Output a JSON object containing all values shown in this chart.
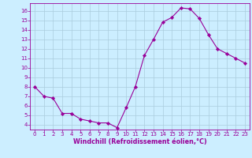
{
  "x": [
    0,
    1,
    2,
    3,
    4,
    5,
    6,
    7,
    8,
    9,
    10,
    11,
    12,
    13,
    14,
    15,
    16,
    17,
    18,
    19,
    20,
    21,
    22,
    23
  ],
  "y": [
    8.0,
    7.0,
    6.8,
    5.2,
    5.2,
    4.6,
    4.4,
    4.2,
    4.2,
    3.7,
    5.8,
    8.0,
    11.3,
    13.0,
    14.8,
    15.3,
    16.3,
    16.2,
    15.2,
    13.5,
    12.0,
    11.5,
    11.0,
    10.5
  ],
  "line_color": "#990099",
  "marker": "D",
  "marker_size": 2.2,
  "bg_color": "#cceeff",
  "grid_color": "#aaccdd",
  "xlabel": "Windchill (Refroidissement éolien,°C)",
  "xlim": [
    -0.5,
    23.5
  ],
  "ylim": [
    3.5,
    16.8
  ],
  "yticks": [
    4,
    5,
    6,
    7,
    8,
    9,
    10,
    11,
    12,
    13,
    14,
    15,
    16
  ],
  "xticks": [
    0,
    1,
    2,
    3,
    4,
    5,
    6,
    7,
    8,
    9,
    10,
    11,
    12,
    13,
    14,
    15,
    16,
    17,
    18,
    19,
    20,
    21,
    22,
    23
  ],
  "label_fontsize": 5.8,
  "tick_fontsize": 5.0
}
